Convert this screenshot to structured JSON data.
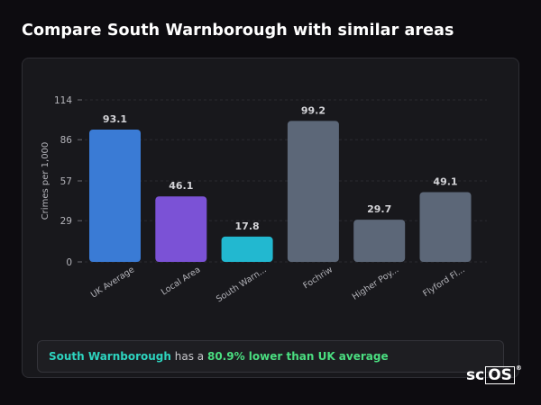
{
  "header": {
    "title": "Compare South Warnborough with similar areas"
  },
  "chart_data": {
    "type": "bar",
    "ylabel": "Crimes per 1,000",
    "ylim": [
      0,
      114
    ],
    "yticks": [
      0,
      29,
      57,
      86,
      114
    ],
    "grid": true,
    "categories": [
      "UK Average",
      "Local Area",
      "South Warn...",
      "Fochriw",
      "Higher Poy...",
      "Flyford Fl..."
    ],
    "values": [
      93.1,
      46.1,
      17.8,
      99.2,
      29.7,
      49.1
    ],
    "value_labels": [
      "93.1",
      "46.1",
      "17.8",
      "99.2",
      "29.7",
      "49.1"
    ],
    "colors": [
      "#3a7bd5",
      "#7b52d6",
      "#22b8d0",
      "#5c6778",
      "#5c6778",
      "#5c6778"
    ]
  },
  "summary": {
    "area": "South Warnborough",
    "middle": "has a",
    "highlight": "80.9% lower than UK average"
  },
  "logo": {
    "main": "sc",
    "boxed": "OS",
    "mark": "®"
  }
}
